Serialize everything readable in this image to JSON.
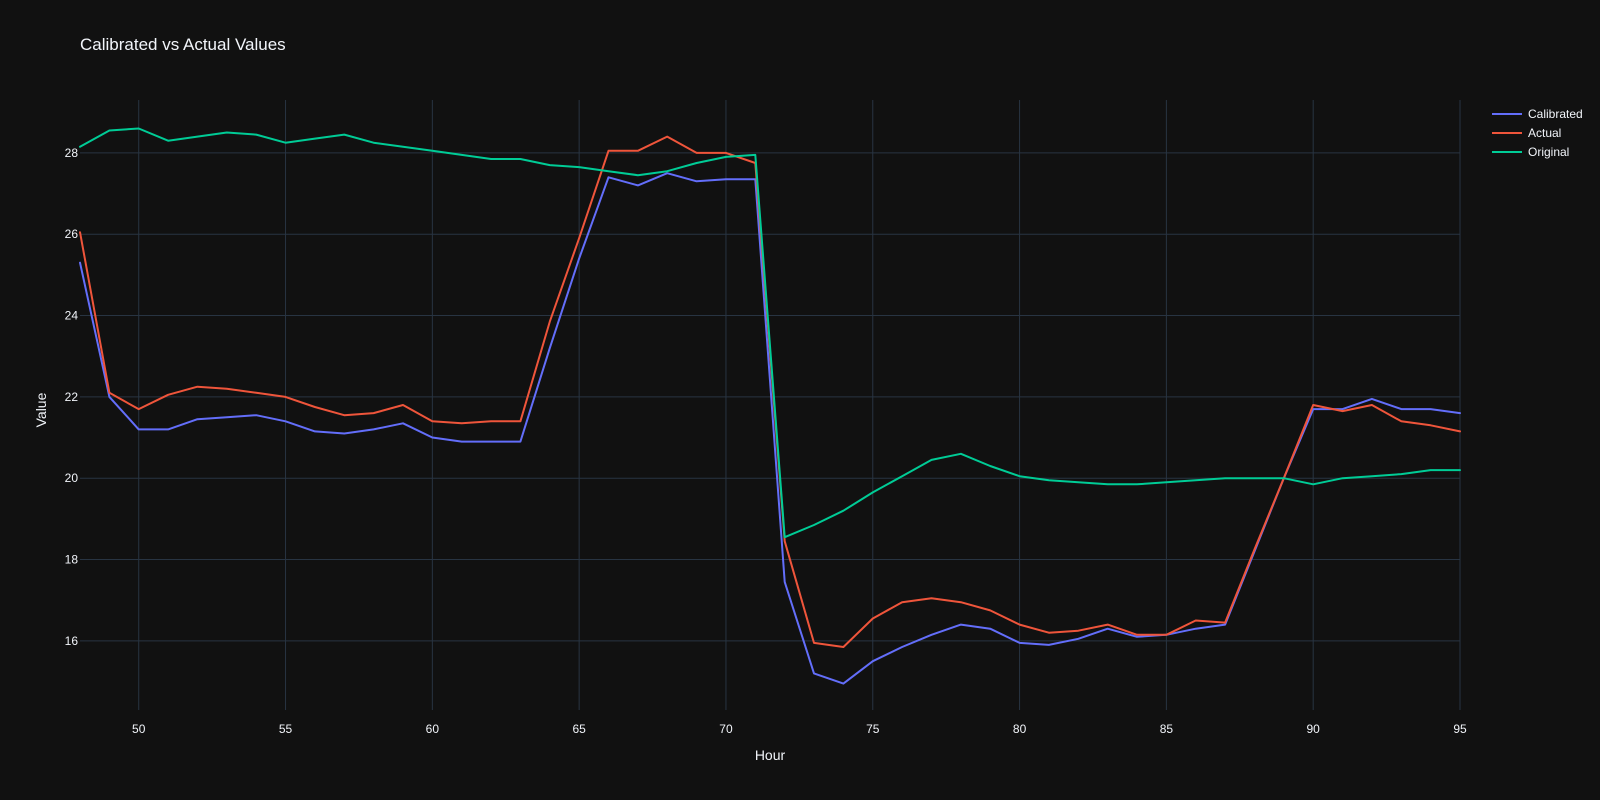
{
  "chart_data": {
    "type": "line",
    "title": "Calibrated vs Actual Values",
    "xlabel": "Hour",
    "ylabel": "Value",
    "xlim": [
      48,
      95
    ],
    "ylim": [
      14.3,
      29.3
    ],
    "x_ticks": [
      50,
      55,
      60,
      65,
      70,
      75,
      80,
      85,
      90,
      95
    ],
    "y_ticks": [
      16,
      18,
      20,
      22,
      24,
      26,
      28
    ],
    "grid": true,
    "legend_position": "top-right",
    "colors": {
      "background": "#111111",
      "grid": "#283442",
      "text": "#f2f5fa"
    },
    "x": [
      48,
      49,
      50,
      51,
      52,
      53,
      54,
      55,
      56,
      57,
      58,
      59,
      60,
      61,
      62,
      63,
      64,
      65,
      66,
      67,
      68,
      69,
      70,
      71,
      72,
      73,
      74,
      75,
      76,
      77,
      78,
      79,
      80,
      81,
      82,
      83,
      84,
      85,
      86,
      87,
      88,
      89,
      90,
      91,
      92,
      93,
      94,
      95
    ],
    "series": [
      {
        "name": "Calibrated",
        "color": "#636efa",
        "values": [
          25.3,
          22.0,
          21.2,
          21.2,
          21.45,
          21.5,
          21.55,
          21.4,
          21.15,
          21.1,
          21.2,
          21.35,
          21.0,
          20.9,
          20.9,
          20.9,
          23.2,
          25.4,
          27.4,
          27.2,
          27.5,
          27.3,
          27.35,
          27.35,
          17.45,
          15.2,
          14.95,
          15.5,
          15.85,
          16.15,
          16.4,
          16.3,
          15.95,
          15.9,
          16.05,
          16.3,
          16.1,
          16.15,
          16.3,
          16.4,
          18.2,
          20.0,
          21.7,
          21.7,
          21.95,
          21.7,
          21.7,
          21.6
        ]
      },
      {
        "name": "Actual",
        "color": "#ef553b",
        "values": [
          26.05,
          22.1,
          21.7,
          22.05,
          22.25,
          22.2,
          22.1,
          22.0,
          21.75,
          21.55,
          21.6,
          21.8,
          21.4,
          21.35,
          21.4,
          21.4,
          23.85,
          25.9,
          28.05,
          28.05,
          28.4,
          28.0,
          28.0,
          27.75,
          18.45,
          15.95,
          15.85,
          16.55,
          16.95,
          17.05,
          16.95,
          16.75,
          16.4,
          16.2,
          16.25,
          16.4,
          16.15,
          16.15,
          16.5,
          16.45,
          18.25,
          20.0,
          21.8,
          21.65,
          21.8,
          21.4,
          21.3,
          21.15
        ]
      },
      {
        "name": "Original",
        "color": "#00cc96",
        "values": [
          28.15,
          28.55,
          28.6,
          28.3,
          28.4,
          28.5,
          28.45,
          28.25,
          28.35,
          28.45,
          28.25,
          28.15,
          28.05,
          27.95,
          27.85,
          27.85,
          27.7,
          27.65,
          27.55,
          27.45,
          27.55,
          27.75,
          27.9,
          27.95,
          18.55,
          18.85,
          19.2,
          19.65,
          20.05,
          20.45,
          20.6,
          20.3,
          20.05,
          19.95,
          19.9,
          19.85,
          19.85,
          19.9,
          19.95,
          20.0,
          20.0,
          20.0,
          19.85,
          20.0,
          20.05,
          20.1,
          20.2,
          20.2
        ]
      }
    ]
  }
}
